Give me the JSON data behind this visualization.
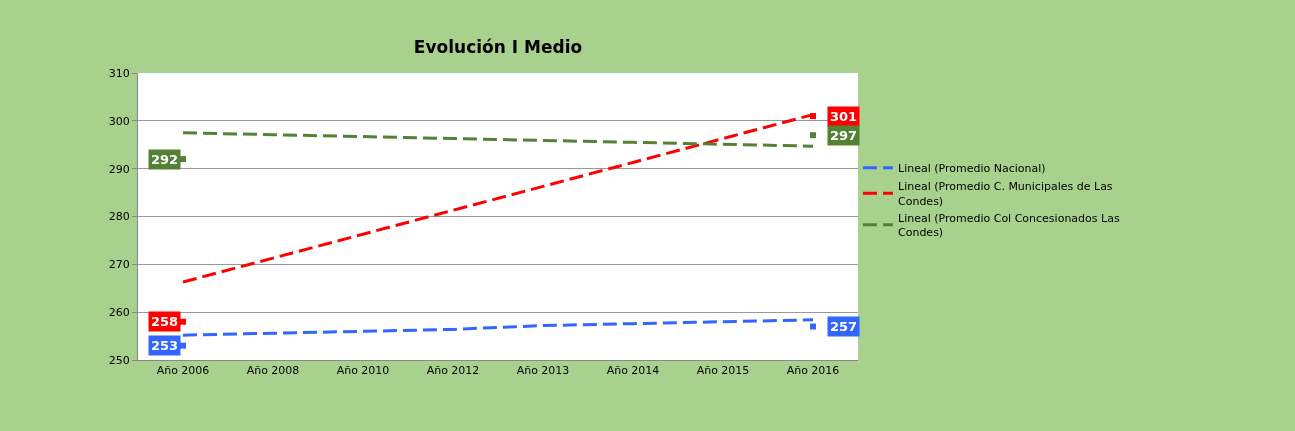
{
  "chart_data": {
    "type": "line",
    "title": "Evolución I Medio",
    "categories": [
      "Año 2006",
      "Año 2008",
      "Año 2010",
      "Año 2012",
      "Año 2013",
      "Año 2014",
      "Año 2015",
      "Año 2016"
    ],
    "series": [
      {
        "name": "Lineal (Promedio Nacional)",
        "color": "#3366ff",
        "values": [
          255.2,
          255.6,
          256.0,
          256.4,
          257.2,
          257.6,
          258.0,
          258.4
        ]
      },
      {
        "name": "Lineal (Promedio C. Municipales de Las Condes)",
        "color": "#ff0000",
        "values": [
          266.3,
          271.3,
          276.3,
          281.3,
          286.3,
          291.3,
          296.3,
          301.3
        ]
      },
      {
        "name": "Lineal (Promedio Col Concesionados Las Condes)",
        "color": "#548235",
        "values": [
          297.5,
          297.1,
          296.7,
          296.3,
          295.9,
          295.5,
          295.1,
          294.7
        ]
      },
      {
        "type": "scatter",
        "marker": "square",
        "color": "#3366ff",
        "values": [
          253,
          null,
          null,
          null,
          null,
          null,
          null,
          257
        ],
        "value_labels": [
          "253",
          null,
          null,
          null,
          null,
          null,
          null,
          "257"
        ]
      },
      {
        "type": "scatter",
        "marker": "square",
        "color": "#ff0000",
        "values": [
          258,
          null,
          null,
          null,
          null,
          null,
          null,
          301
        ],
        "value_labels": [
          "258",
          null,
          null,
          null,
          null,
          null,
          null,
          "301"
        ]
      },
      {
        "type": "scatter",
        "marker": "square",
        "color": "#548235",
        "values": [
          292,
          null,
          null,
          null,
          null,
          null,
          null,
          297
        ],
        "value_labels": [
          "292",
          null,
          null,
          null,
          null,
          null,
          null,
          "297"
        ]
      }
    ],
    "ylim": [
      250,
      310
    ],
    "yticks": [
      250,
      260,
      270,
      280,
      290,
      300,
      310
    ],
    "grid": "y",
    "legend": "right",
    "marker": "none",
    "line_style": "dashed"
  }
}
